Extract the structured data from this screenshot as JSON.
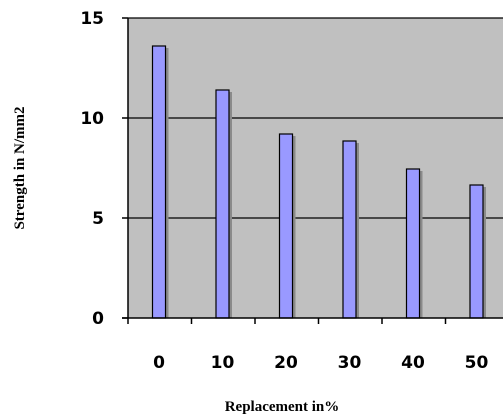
{
  "chart_data": {
    "type": "bar",
    "categories": [
      "0",
      "10",
      "20",
      "30",
      "40",
      "50"
    ],
    "values": [
      13.6,
      11.4,
      9.2,
      8.85,
      7.45,
      6.65
    ],
    "xlabel": "Replacement in%",
    "ylabel": "Strength in N/mm2",
    "ylim": [
      0,
      15
    ],
    "yticks": [
      "0",
      "5",
      "10",
      "15"
    ],
    "grid": true,
    "legend": "none",
    "colors": {
      "plot_background": "#c0c0c0",
      "bar_fill": "#9999ff",
      "bar_edge": "#000000",
      "gridline": "#000000"
    }
  }
}
